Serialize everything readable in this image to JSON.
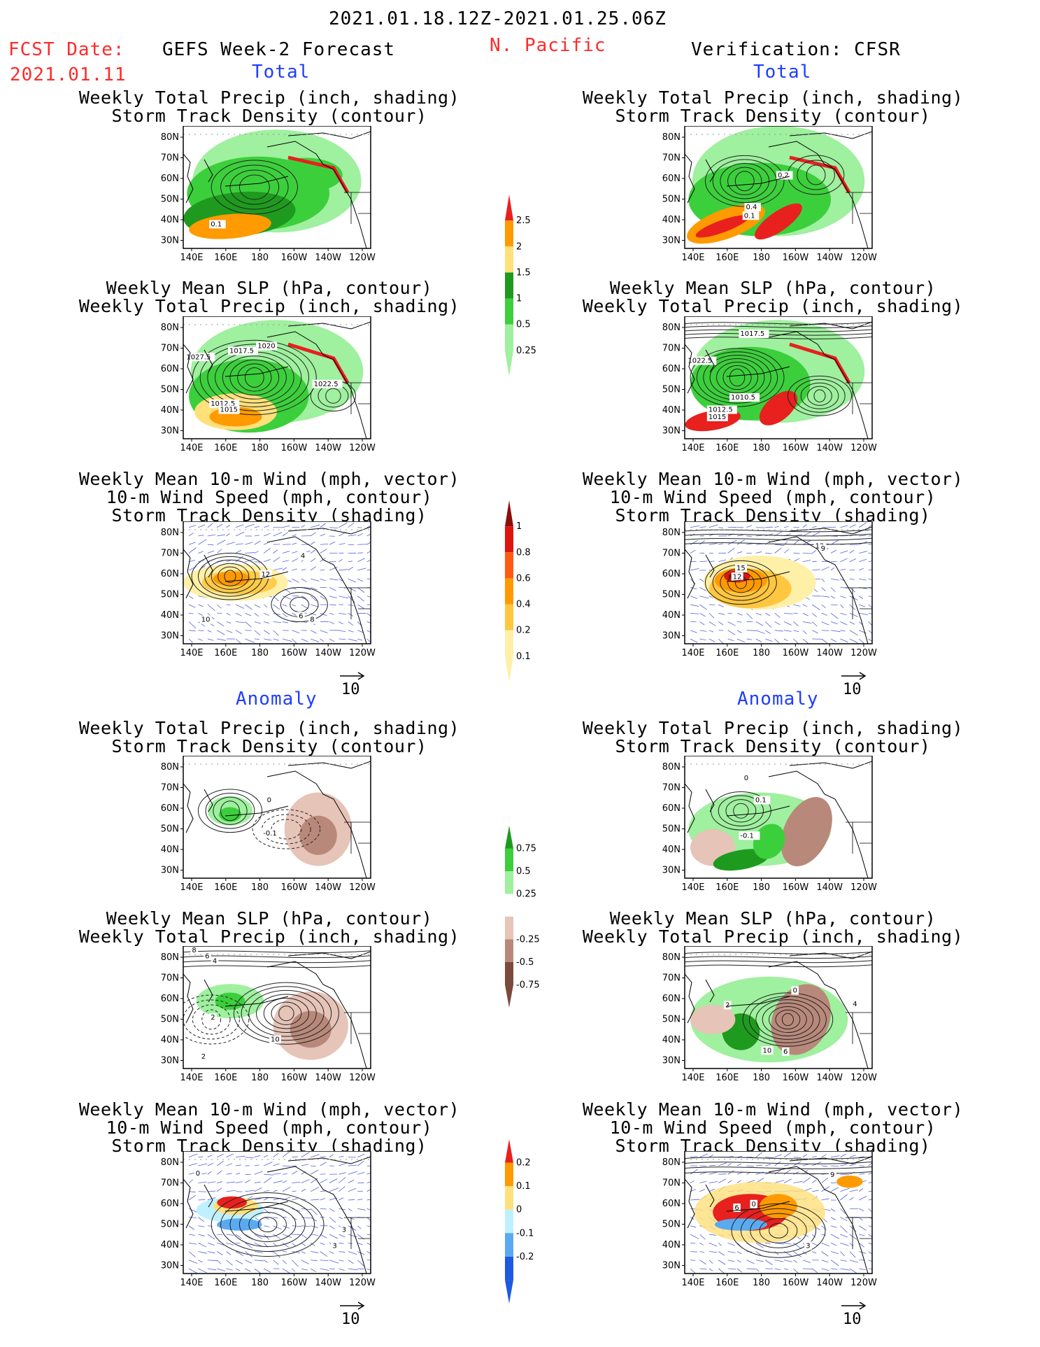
{
  "header": {
    "date_range": "2021.01.18.12Z-2021.01.25.06Z",
    "fcst_label": "FCST Date:",
    "fcst_date": "2021.01.11",
    "region": "N. Pacific",
    "left_title": "GEFS Week-2 Forecast",
    "right_title": "Verification: CFSR"
  },
  "sections": {
    "total": "Total",
    "anomaly": "Anomaly"
  },
  "panel_titles": {
    "precip_storm": [
      "Weekly Total Precip (inch, shading)",
      "Storm Track Density (contour)"
    ],
    "slp_precip": [
      "Weekly Mean SLP (hPa, contour)",
      "Weekly Total Precip (inch, shading)"
    ],
    "wind_storm": [
      "Weekly Mean 10-m Wind (mph, vector)",
      "10-m Wind Speed (mph, contour)",
      "Storm Track Density (shading)"
    ]
  },
  "axes": {
    "lat_ticks": [
      "80N",
      "70N",
      "60N",
      "50N",
      "40N",
      "30N"
    ],
    "lon_ticks": [
      "140E",
      "160E",
      "180",
      "160W",
      "140W",
      "120W"
    ]
  },
  "vector_ref": "10",
  "colorbars": {
    "precip_total": {
      "labels": [
        "2.5",
        "2",
        "1.5",
        "1",
        "0.5",
        "0.25"
      ],
      "colors": [
        "#e8201e",
        "#ff9a00",
        "#ffe07a",
        "#1e9a1e",
        "#3ccf3c",
        "#9ff09f"
      ]
    },
    "storm_total": {
      "labels": [
        "1",
        "0.8",
        "0.6",
        "0.4",
        "0.2",
        "0.1"
      ],
      "colors": [
        "#8c0f0a",
        "#e0140e",
        "#ff5a14",
        "#ff9900",
        "#ffc640",
        "#fff0a8"
      ]
    },
    "precip_anom": {
      "labels": [
        "0.75",
        "0.5",
        "0.25",
        "-0.25",
        "-0.5",
        "-0.75"
      ],
      "colors": [
        "#1e9a1e",
        "#3ccf3c",
        "#9ff09f",
        "#ffffff",
        "#e6c4b8",
        "#b8897a",
        "#7a4a3c"
      ]
    },
    "storm_anom": {
      "labels": [
        "0.2",
        "0.1",
        "0",
        "-0.1",
        "-0.2"
      ],
      "colors": [
        "#e8201e",
        "#ff9a00",
        "#ffe07a",
        "#bff0ff",
        "#5aaaf0",
        "#1e5ae0"
      ]
    }
  },
  "panels": {
    "l1": [
      "0.1"
    ],
    "r1": [
      "0.2",
      "0.4",
      "0.1"
    ],
    "l2": [
      "1027.5",
      "1017.5",
      "1020",
      "1022.5",
      "1012.5",
      "1015"
    ],
    "r2": [
      "1017.5",
      "1022.5",
      "1010.5",
      "1012.5",
      "1015"
    ],
    "l3": [
      "12",
      "10",
      "6",
      "8",
      "4"
    ],
    "r3": [
      "12",
      "9",
      "15",
      "12"
    ],
    "l4": [
      "0",
      "-0.1"
    ],
    "r4": [
      "0",
      "0.1",
      "-0.1"
    ],
    "l5": [
      "8",
      "6",
      "4",
      "2",
      "2",
      "10"
    ],
    "r5": [
      "0",
      "2",
      "4",
      "10",
      "6"
    ],
    "l6": [
      "0",
      "3",
      "3"
    ],
    "r6": [
      "9",
      "6",
      "0",
      "3"
    ]
  }
}
